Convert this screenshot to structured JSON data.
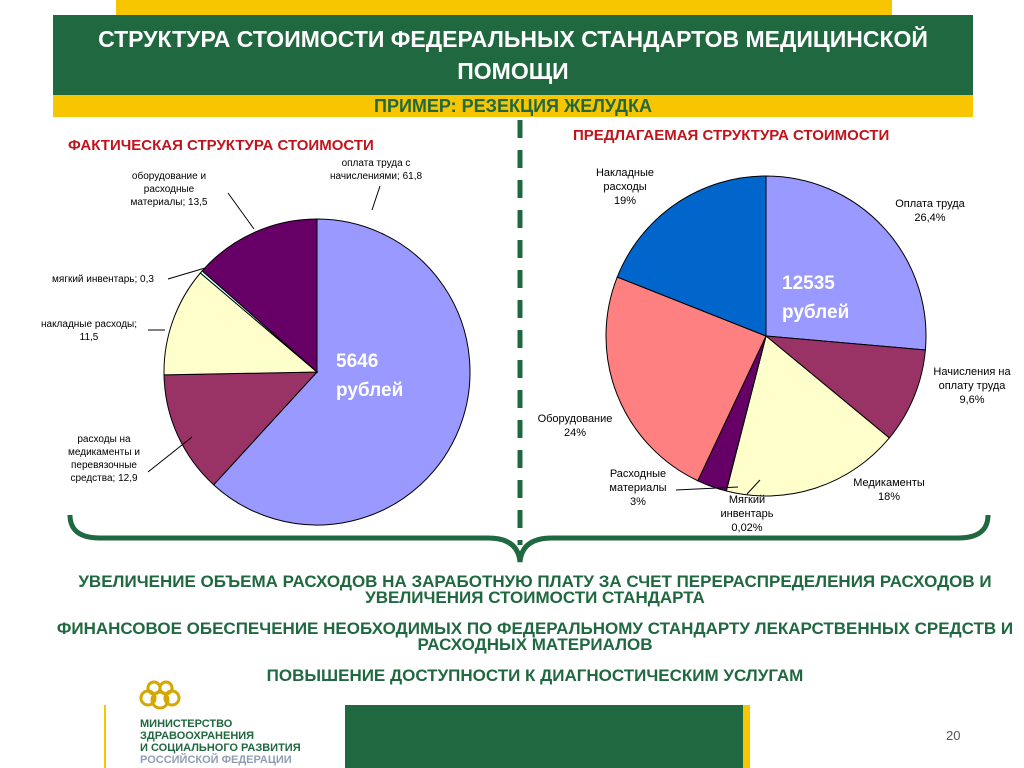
{
  "slide": {
    "title": "СТРУКТУРА СТОИМОСТИ ФЕДЕРАЛЬНЫХ СТАНДАРТОВ МЕДИЦИНСКОЙ ПОМОЩИ",
    "subtitle": "ПРИМЕР: РЕЗЕКЦИЯ ЖЕЛУДКА",
    "page_number": "20"
  },
  "chart_data": [
    {
      "type": "pie",
      "title": "ФАКТИЧЕСКАЯ СТРУКТУРА СТОИМОСТИ",
      "center_label": [
        "5646",
        "рублей"
      ],
      "slices": [
        {
          "label": "оплата труда с начислениями",
          "value": 61.8,
          "label_lines": [
            "оплата труда с",
            "начислениями; 61,8"
          ],
          "color": "#9999ff"
        },
        {
          "label": "расходы на медикаменты и перевязочные средства",
          "value": 12.9,
          "label_lines": [
            "расходы на",
            "медикаменты и",
            "перевязочные",
            "средства; 12,9"
          ],
          "color": "#993366"
        },
        {
          "label": "накладные расходы",
          "value": 11.5,
          "label_lines": [
            "накладные расходы;",
            "11,5"
          ],
          "color": "#ffffcc"
        },
        {
          "label": "мягкий инвентарь",
          "value": 0.3,
          "label_lines": [
            "мягкий инвентарь; 0,3"
          ],
          "color": "#ccffff"
        },
        {
          "label": "оборудование и расходные материалы",
          "value": 13.5,
          "label_lines": [
            "оборудование и",
            "расходные",
            "материалы; 13,5"
          ],
          "color": "#660066"
        }
      ]
    },
    {
      "type": "pie",
      "title": "ПРЕДЛАГАЕМАЯ СТРУКТУРА СТОИМОСТИ",
      "center_label": [
        "12535",
        "рублей"
      ],
      "slices": [
        {
          "label": "Оплата труда",
          "value": 26.4,
          "label_lines": [
            "Оплата труда",
            "26,4%"
          ],
          "color": "#9999ff"
        },
        {
          "label": "Начисления на оплату труда",
          "value": 9.6,
          "label_lines": [
            "Начисления на",
            "оплату труда",
            "9,6%"
          ],
          "color": "#993366"
        },
        {
          "label": "Медикаменты",
          "value": 18,
          "label_lines": [
            "Медикаменты",
            "18%"
          ],
          "color": "#ffffcc"
        },
        {
          "label": "Мягкий инвентарь",
          "value": 0.02,
          "label_lines": [
            "Мягкий",
            "инвентарь",
            "0,02%"
          ],
          "color": "#ccffff"
        },
        {
          "label": "Расходные материалы",
          "value": 3,
          "label_lines": [
            "Расходные",
            "материалы",
            "3%"
          ],
          "color": "#660066"
        },
        {
          "label": "Оборудование",
          "value": 24,
          "label_lines": [
            "Оборудование",
            "24%"
          ],
          "color": "#ff8080"
        },
        {
          "label": "Накладные расходы",
          "value": 19,
          "label_lines": [
            "Накладные",
            "расходы",
            "19%"
          ],
          "color": "#0066cc"
        }
      ]
    }
  ],
  "conclusions": [
    "УВЕЛИЧЕНИЕ ОБЪЕМА РАСХОДОВ НА ЗАРАБОТНУЮ ПЛАТУ ЗА СЧЕТ ПЕРЕРАСПРЕДЕЛЕНИЯ РАСХОДОВ И УВЕЛИЧЕНИЯ СТОИМОСТИ СТАНДАРТА",
    "ФИНАНСОВОЕ ОБЕСПЕЧЕНИЕ НЕОБХОДИМЫХ ПО ФЕДЕРАЛЬНОМУ СТАНДАРТУ ЛЕКАРСТВЕННЫХ СРЕДСТВ И РАСХОДНЫХ МАТЕРИАЛОВ",
    "ПОВЫШЕНИЕ ДОСТУПНОСТИ К ДИАГНОСТИЧЕСКИМ УСЛУГАМ"
  ],
  "ministry": {
    "line1": "МИНИСТЕРСТВО",
    "line2": "ЗДРАВООХРАНЕНИЯ",
    "line3": "И СОЦИАЛЬНОГО РАЗВИТИЯ",
    "line4": "РОССИЙСКОЙ ФЕДЕРАЦИИ",
    "logo_icon": "ministry-emblem-icon"
  },
  "colors": {
    "brand_green": "#20683f",
    "brand_gold": "#f7c600",
    "section_title_red": "#c0141c"
  }
}
